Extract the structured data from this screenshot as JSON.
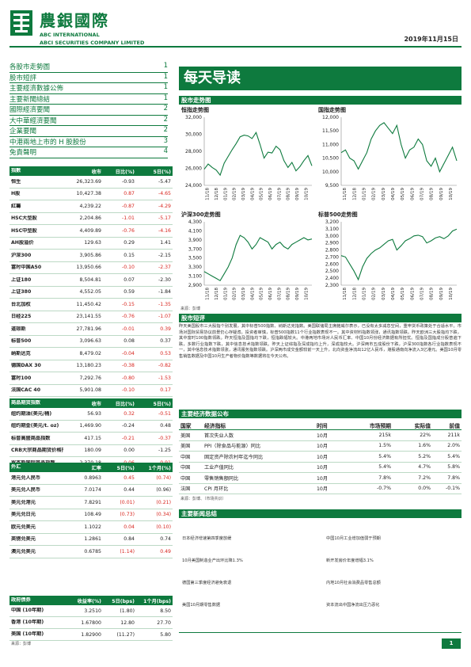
{
  "header": {
    "brand_cn": "農銀國際",
    "brand_en1": "ABC INTERNATIONAL",
    "brand_en2": "ABCI SECURITIES COMPANY LIMITED",
    "date": "2019年11月15日"
  },
  "toc": [
    {
      "label": "各股市走勢圖",
      "page": "1"
    },
    {
      "label": "股市短評",
      "page": "1"
    },
    {
      "label": "主要經濟數據公佈",
      "page": "1"
    },
    {
      "label": "主要新聞總結",
      "page": "1"
    },
    {
      "label": "國際經濟要聞",
      "page": "2"
    },
    {
      "label": "大中華經濟要聞",
      "page": "2"
    },
    {
      "label": "企業要聞",
      "page": "2"
    },
    {
      "label": "中港兩地上市的 H 股股份",
      "page": "3"
    },
    {
      "label": "免責聲明",
      "page": "4"
    }
  ],
  "indices_table": {
    "headers": [
      "指數",
      "收市",
      "日比(%)",
      "5日(%)"
    ],
    "rows": [
      [
        "恒生",
        "26,323.69",
        "-0.93",
        "-5.47"
      ],
      [
        "H股",
        "10,427.38",
        "0.87",
        "-4.65"
      ],
      [
        "紅籌",
        "4,239.22",
        "-0.87",
        "-4.29"
      ],
      [
        "HSC大型股",
        "2,204.86",
        "-1.01",
        "-5.17"
      ],
      [
        "HSC中型股",
        "4,409.89",
        "-0.76",
        "-4.16"
      ],
      [
        "AH股溢价",
        "129.63",
        "0.29",
        "1.41"
      ],
      [
        "沪深300",
        "3,905.86",
        "0.15",
        "-2.15"
      ],
      [
        "富时中国A50",
        "13,950.66",
        "-0.10",
        "-2.37"
      ],
      [
        "上证180",
        "8,504.81",
        "0.07",
        "-2.30"
      ],
      [
        "上证380",
        "4,552.05",
        "0.59",
        "-1.84"
      ],
      [
        "台北加权",
        "11,450.42",
        "-0.15",
        "-1.35"
      ],
      [
        "日经225",
        "23,141.55",
        "-0.76",
        "-1.07"
      ],
      [
        "道琼斯",
        "27,781.96",
        "-0.01",
        "0.39"
      ],
      [
        "标普500",
        "3,096.63",
        "0.08",
        "0.37"
      ],
      [
        "纳斯达克",
        "8,479.02",
        "-0.04",
        "0.53"
      ],
      [
        "德国DAX 30",
        "13,180.23",
        "-0.38",
        "-0.82"
      ],
      [
        "富时100",
        "7,292.76",
        "-0.80",
        "-1.53"
      ],
      [
        "法国CAC 40",
        "5,901.08",
        "-0.10",
        "0.17"
      ]
    ],
    "colors": [
      "blk",
      "red",
      "red",
      "red",
      "red",
      "blk",
      "blk",
      "red",
      "blk",
      "blk",
      "red",
      "red",
      "red",
      "blk",
      "red",
      "red",
      "red",
      "red"
    ]
  },
  "commodities_table": {
    "headers": [
      "商品期货指数",
      "收市",
      "日比(%)",
      "5日(%)"
    ],
    "rows": [
      [
        "纽约期油(美元/桶)",
        "56.93",
        "0.32",
        "-0.51"
      ],
      [
        "纽约期金(美元/t. oz)",
        "1,469.90",
        "-0.24",
        "0.48"
      ],
      [
        "标普高盛商品指数",
        "417.15",
        "-0.21",
        "-0.37"
      ],
      [
        "CRB大宗商品期货价格指数",
        "180.09",
        "0.00",
        "-1.25"
      ],
      [
        "罗杰斯国际商品指数",
        "2,370.18",
        "-0.06",
        "-0.91"
      ]
    ],
    "colors": [
      "red",
      "blk",
      "red",
      "blk",
      "red"
    ]
  },
  "fx_table": {
    "headers": [
      "外汇",
      "汇率",
      "5日(%)",
      "1个月(%)"
    ],
    "rows": [
      [
        "港元兑人民币",
        "0.8963",
        "0.45",
        "(0.74)"
      ],
      [
        "美元兑人民币",
        "7.0174",
        "0.44",
        "(0.96)"
      ],
      [
        "美元兑港元",
        "7.8291",
        "(0.01)",
        "(0.21)"
      ],
      [
        "美元兑日元",
        "108.49",
        "(0.73)",
        "(0.34)"
      ],
      [
        "欧元兑美元",
        "1.1022",
        "0.04",
        "(0.10)"
      ],
      [
        "英镑兑美元",
        "1.2861",
        "0.84",
        "0.74"
      ],
      [
        "澳元兑美元",
        "0.6785",
        "(1.14)",
        "0.49"
      ]
    ],
    "colors": [
      "red",
      "blk",
      "red",
      "red",
      "red",
      "blk",
      "red"
    ]
  },
  "bond_table": {
    "headers": [
      "政府债券",
      "收益率(%)",
      "5日(bps)",
      "1个月(bps)"
    ],
    "rows": [
      [
        "中国 (10年期)",
        "3.2510",
        "(1.80)",
        "8.50"
      ],
      [
        "香港 (10年期)",
        "1.67800",
        "12.80",
        "27.70"
      ],
      [
        "美国 (10年期)",
        "1.82900",
        "(11.27)",
        "5.80"
      ]
    ],
    "note": "来源：彭博"
  },
  "main_title": "每天导读",
  "chart_section_title": "股市走势图",
  "chart_source": "来源：彭博",
  "charts": [
    {
      "title": "恒指走势图",
      "ticks_y": [
        "32,000",
        "30,000",
        "28,000",
        "26,000",
        "24,000"
      ],
      "ylim": [
        24000,
        32000
      ],
      "values": [
        25900,
        26500,
        26100,
        25800,
        25200,
        26600,
        27400,
        28200,
        28900,
        29700,
        29900,
        29800,
        29500,
        30200,
        28800,
        27200,
        27900,
        27800,
        28600,
        28200,
        26900,
        26100,
        26700,
        25700,
        26200,
        26900,
        27500,
        26300
      ]
    },
    {
      "title": "国指走势图",
      "ticks_y": [
        "12,000",
        "11,500",
        "11,000",
        "10,500",
        "10,000",
        "9,500"
      ],
      "ylim": [
        9500,
        12000
      ],
      "values": [
        10700,
        10800,
        10500,
        10400,
        10100,
        10400,
        10700,
        11200,
        11500,
        11700,
        11800,
        11600,
        11400,
        11700,
        11000,
        10500,
        10800,
        10900,
        11200,
        11000,
        10400,
        10200,
        10500,
        10000,
        10300,
        10600,
        10900,
        10400
      ]
    },
    {
      "title": "沪深300走势图",
      "ticks_y": [
        "4,300",
        "4,100",
        "3,900",
        "3,700",
        "3,500",
        "3,300",
        "3,100",
        "2,900"
      ],
      "ylim": [
        2900,
        4300
      ],
      "values": [
        3200,
        3150,
        3100,
        3050,
        3000,
        3150,
        3300,
        3500,
        3800,
        4000,
        3950,
        3850,
        3700,
        3800,
        3950,
        3900,
        3850,
        3700,
        3800,
        3850,
        3750,
        3700,
        3800,
        3850,
        3900,
        3950,
        3900,
        3920
      ]
    },
    {
      "title": "标普500走势图",
      "ticks_y": [
        "3,200",
        "3,100",
        "3,000",
        "2,900",
        "2,800",
        "2,700",
        "2,600",
        "2,500",
        "2,400",
        "2,300"
      ],
      "ylim": [
        2300,
        3200
      ],
      "values": [
        2720,
        2700,
        2600,
        2500,
        2380,
        2560,
        2680,
        2750,
        2800,
        2830,
        2880,
        2930,
        2950,
        2800,
        2860,
        2930,
        2960,
        3000,
        3010,
        2990,
        2900,
        2930,
        2970,
        2990,
        2960,
        3000,
        3070,
        3095
      ]
    }
  ],
  "chart_x_ticks": [
    "11/18",
    "12/18",
    "01/19",
    "02/19",
    "03/19",
    "04/19",
    "05/19",
    "06/19",
    "07/19",
    "08/19",
    "09/19",
    "10/19"
  ],
  "commentary_title": "股市短评",
  "commentary": "昨天美国股市三大股指个别发展，其中标普500指数、纳斯达克指数。美国联储局主席鲍威尔表示，已没有太多减息空间，重申货币政策处于合适水平。市场对国际贸易协议前景仍心存疑虑。投资者审慎，标普500指数11个行业指数表现不一。其中资材料指数领涨，通讯指数领跌。昨天欧洲三大股指均下跌，其中富时100指数领跌。昨天恒指及国指均下跌，恒指跌幅较大。中港两地市场对人民币汇率、中国10月份经济数据有所担忧。恒指及国指成分股普遍下跌，多数行业指数下跌，其中信息技术指数领跌。昨天上证综指及深成指均上升，深成指较大。沪深两市五成股份下跌，沪深300指数各行业指数表现不一，其中信息技术指数领涨，通讯服务指数领跌。沪深两市成交金额较前一天上升，北向资金净流出12亿人民币，港股通南向净流入3亿港元。美国10月零售销售数据及中国10月生产者物价指数等数据将在今天公布。",
  "econ_section_title": "主要经济数据公布",
  "econ_table": {
    "headers": [
      "国家",
      "经济指标",
      "时间",
      "市场预期",
      "实际值",
      "前值"
    ],
    "rows": [
      [
        "美国",
        "首次失业人数",
        "10月",
        "215k",
        "22%",
        "211k"
      ],
      [
        "美国",
        "PPI（除食品与能源）同比",
        "10月",
        "1.5%",
        "1.6%",
        "2.0%"
      ],
      [
        "中国",
        "固定资产除农村年迄今同比",
        "10月",
        "5.4%",
        "5.2%",
        "5.4%"
      ],
      [
        "中国",
        "工业产值同比",
        "10月",
        "5.4%",
        "4.7%",
        "5.8%"
      ],
      [
        "中国",
        "零售销售额同比",
        "10月",
        "7.8%",
        "7.2%",
        "7.8%"
      ],
      [
        "法国",
        "CPI 月环比",
        "10月",
        "-0.7%",
        "0.0%",
        "-0.1%"
      ]
    ],
    "note": "来源：彭博、（市场共识）"
  },
  "news_section_title": "主要新闻总结",
  "news": [
    "日本经济增速第四季度放缓",
    "中国10月工业增加值弱于预期",
    "10月美国制造业产出环比降1.3%",
    "新开发房价年度增幅3.1%",
    "德国第三季度经济避免衰退",
    "内地10月社会消费品零售总额",
    "美国10月期零售数据",
    "资本流出中国净流出压力恶化"
  ],
  "page_number": "1"
}
